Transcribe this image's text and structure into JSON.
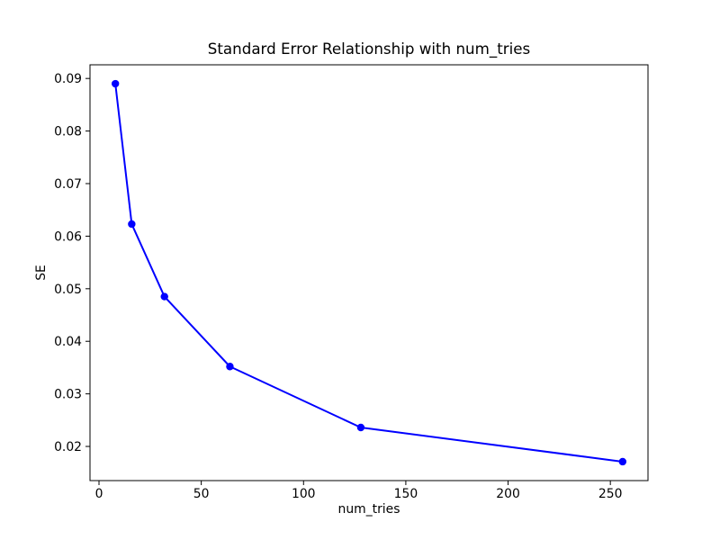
{
  "figure": {
    "background": "#ffffff",
    "text_color": "#000000",
    "axis_color": "#000000"
  },
  "chart_data": {
    "type": "line",
    "title": "Standard Error Relationship with num_tries",
    "xlabel": "num_tries",
    "ylabel": "SE",
    "x": [
      8,
      16,
      32,
      64,
      128,
      256
    ],
    "y": [
      0.089,
      0.0623,
      0.0485,
      0.0352,
      0.0236,
      0.0171
    ],
    "line_color": "#0000ff",
    "marker": "circle",
    "marker_radius": 4.2,
    "line_width": 2,
    "xticks": [
      0,
      50,
      100,
      150,
      200,
      250
    ],
    "yticks": [
      0.02,
      0.03,
      0.04,
      0.05,
      0.06,
      0.07,
      0.08,
      0.09
    ],
    "ytick_decimals": 2,
    "xlim": [
      -4.4,
      268.4
    ],
    "ylim": [
      0.0135,
      0.0926
    ],
    "grid": false,
    "legend": "none"
  }
}
